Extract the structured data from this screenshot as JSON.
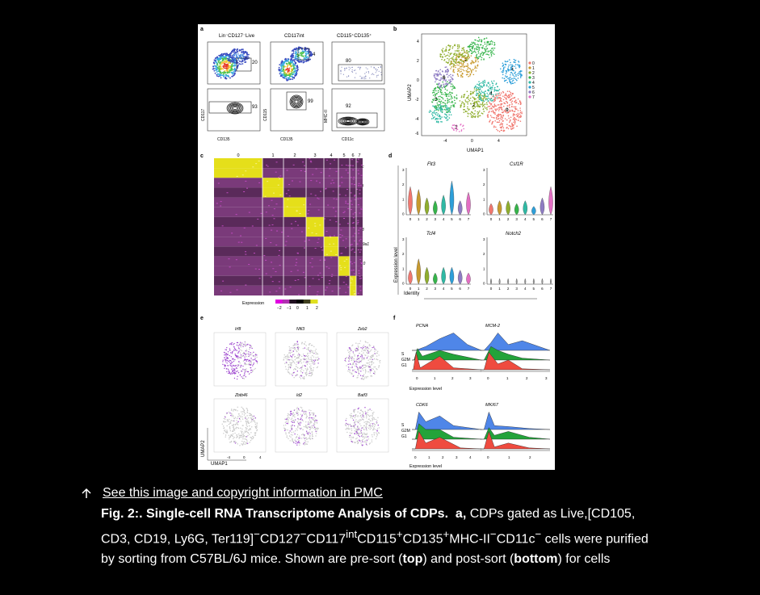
{
  "figure": {
    "panels": {
      "a": {
        "letter": "a",
        "col_titles": [
          "Lin⁻CD127⁻Live",
          "CD117int",
          "CD115⁺CD135⁺"
        ],
        "gate_values_top": [
          "20",
          "2.4",
          "80"
        ],
        "gate_values_bottom": [
          "93",
          "99",
          "92"
        ],
        "y_labels": [
          "CD117",
          "CD115",
          "MHC-II"
        ],
        "x_labels": [
          "CD135",
          "CD135",
          "CD11c"
        ]
      },
      "b": {
        "letter": "b",
        "xlabel": "UMAP1",
        "ylabel": "UMAP2",
        "x_ticks": [
          "-4",
          "0",
          "4"
        ],
        "y_ticks": [
          "4",
          "2",
          "0",
          "-2",
          "-4",
          "-6"
        ],
        "cluster_labels": [
          "0",
          "1",
          "2",
          "3",
          "4",
          "5",
          "6",
          "7"
        ],
        "legend": [
          "0",
          "1",
          "2",
          "3",
          "4",
          "5",
          "6",
          "7"
        ],
        "colors": [
          "#f0776f",
          "#c89a2e",
          "#8fae2e",
          "#35b44a",
          "#2fb9a4",
          "#2d9fd9",
          "#8e7cc3",
          "#e36fc4"
        ]
      },
      "c": {
        "letter": "c",
        "col_labels": [
          "0",
          "1",
          "2",
          "3",
          "4",
          "5",
          "6",
          "7"
        ],
        "genes": [
          "cMyc",
          "Ly6d",
          "Bst2",
          "Id2",
          "Batf3",
          "Slc39a1",
          "Myl10",
          "Klf4",
          "Ccl6"
        ],
        "colorbar_label": "Expression",
        "colorbar_ticks": [
          "−2",
          "−1",
          "0",
          "1",
          "2"
        ]
      },
      "d": {
        "letter": "d",
        "genes": [
          "Flt3",
          "Csf1R",
          "Tcf4",
          "Notch2"
        ],
        "ylabel": "Expression level",
        "xlabel": "Identity",
        "x_ticks": [
          "0",
          "1",
          "2",
          "3",
          "4",
          "5",
          "6",
          "7"
        ],
        "y_ticks": [
          "3",
          "2",
          "1",
          "0"
        ]
      },
      "e": {
        "letter": "e",
        "genes": [
          "Irf8",
          "Nfil3",
          "Zeb2",
          "Zbtb46",
          "Id2",
          "Batf3"
        ],
        "xlabel": "UMAP1",
        "ylabel": "UMAP2",
        "x_ticks": [
          "-4",
          "0",
          "4"
        ]
      },
      "f": {
        "letter": "f",
        "genes": [
          "PCNA",
          "MCM-2",
          "CDK6",
          "MKI67"
        ],
        "phases": [
          "S",
          "G2M",
          "G1"
        ],
        "xlabel": "Expression level",
        "x_ticks_pcna": [
          "0",
          "1",
          "2",
          "3"
        ],
        "x_ticks_mcm": [
          "0",
          "1",
          "2",
          "3"
        ],
        "x_ticks_cdk": [
          "0",
          "1",
          "2",
          "3",
          "4"
        ],
        "x_ticks_mki": [
          "0",
          "1",
          "2"
        ],
        "phase_colors": [
          "#4f86e8",
          "#23a33a",
          "#ef4b3f"
        ]
      }
    }
  },
  "link_text": "See this image and copyright information in PMC",
  "caption": {
    "title": "Fig. 2:. Single-cell RNA Transcriptome Analysis of CDPs.",
    "panel_letter": "a,",
    "text_1": "CDPs gated as Live,[CD105, CD3, CD19, Ly6G, Ter119]",
    "text_2": "CD127",
    "text_3": "CD117",
    "sup_int": "int",
    "text_4": "CD115",
    "text_5": "CD135",
    "text_6": "MHC-II",
    "text_7": "CD11c",
    "text_8": " cells were purified by sorting from C57BL/6J mice. Shown are pre-sort (",
    "bold_top": "top",
    "text_9": ") and post-sort (",
    "bold_bottom": "bottom",
    "text_10": ") for cells"
  }
}
